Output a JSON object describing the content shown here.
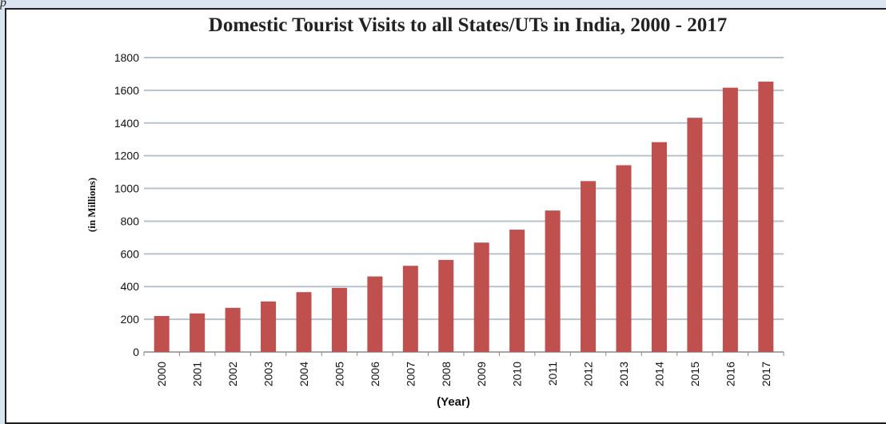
{
  "page": {
    "stray_mark": "p"
  },
  "chart_data": {
    "type": "bar",
    "title": "Domestic Tourist Visits to all States/UTs in India, 2000 - 2017",
    "xlabel": "(Year)",
    "ylabel": "(in Millions)",
    "categories": [
      "2000",
      "2001",
      "2002",
      "2003",
      "2004",
      "2005",
      "2006",
      "2007",
      "2008",
      "2009",
      "2010",
      "2011",
      "2012",
      "2013",
      "2014",
      "2015",
      "2016",
      "2017"
    ],
    "values": [
      220,
      236,
      270,
      309,
      366,
      392,
      462,
      527,
      563,
      669,
      748,
      865,
      1045,
      1142,
      1283,
      1432,
      1616,
      1653
    ],
    "ylim": [
      0,
      1800
    ],
    "yticks": [
      0,
      200,
      400,
      600,
      800,
      1000,
      1200,
      1400,
      1600,
      1800
    ],
    "grid": true,
    "legend": "none",
    "colors": {
      "bar": "#c0504d",
      "grid": "#b7c3cf",
      "axis": "#8a8a8a"
    }
  }
}
